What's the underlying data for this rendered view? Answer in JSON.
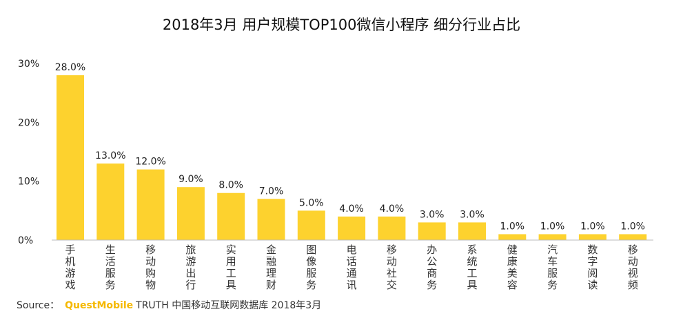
{
  "chart_data": {
    "type": "bar",
    "title": "2018年3月 用户规模TOP100微信小程序 细分行业占比",
    "xlabel": "",
    "ylabel": "",
    "ylim": [
      0,
      30
    ],
    "yticks": [
      "0%",
      "10%",
      "20%",
      "30%"
    ],
    "categories": [
      "手机游戏",
      "生活服务",
      "移动购物",
      "旅游出行",
      "实用工具",
      "金融理财",
      "图像服务",
      "电话通讯",
      "移动社交",
      "办公商务",
      "系统工具",
      "健康美容",
      "汽车服务",
      "数字阅读",
      "移动视频"
    ],
    "values": [
      28.0,
      13.0,
      12.0,
      9.0,
      8.0,
      7.0,
      5.0,
      4.0,
      4.0,
      3.0,
      3.0,
      1.0,
      1.0,
      1.0,
      1.0
    ],
    "value_labels": [
      "28.0%",
      "13.0%",
      "12.0%",
      "9.0%",
      "8.0%",
      "7.0%",
      "5.0%",
      "4.0%",
      "4.0%",
      "3.0%",
      "3.0%",
      "1.0%",
      "1.0%",
      "1.0%",
      "1.0%"
    ],
    "bar_color": "#fdd22e",
    "grid": false,
    "legend": "none"
  },
  "source": {
    "label": "Source：",
    "brand": "QuestMobile",
    "text": "TRUTH 中国移动互联网数据库 2018年3月"
  },
  "colors": {
    "brand": "#f5b800",
    "axis": "#bbbbbb"
  }
}
